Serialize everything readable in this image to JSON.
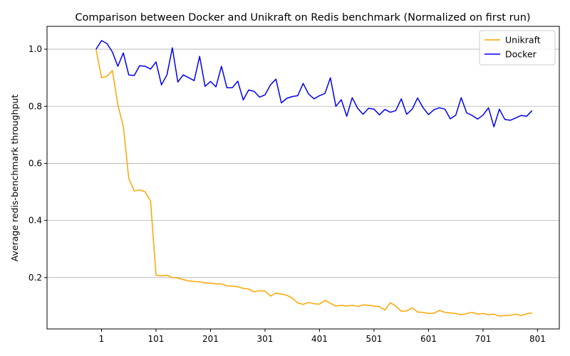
{
  "chart_data": {
    "type": "line",
    "title": "Comparison between Docker and Unikraft on Redis benchmark (Normalized on first run)",
    "xlabel": "",
    "ylabel": "Average redis-benchmark throughput",
    "xlim": [
      -99,
      841
    ],
    "ylim": [
      0.02,
      1.08
    ],
    "xticks": [
      1,
      101,
      201,
      301,
      401,
      501,
      601,
      701,
      801
    ],
    "yticks": [
      0.2,
      0.4,
      0.6,
      0.8,
      1.0
    ],
    "ytick_labels": [
      "0.2",
      "0.4",
      "0.6",
      "0.8",
      "1.0"
    ],
    "grid": "horizontal",
    "legend_position": "top-right",
    "x": [
      -9,
      1,
      11,
      21,
      31,
      41,
      51,
      61,
      71,
      81,
      91,
      101,
      111,
      121,
      131,
      141,
      151,
      161,
      171,
      181,
      191,
      201,
      211,
      221,
      231,
      241,
      251,
      261,
      271,
      281,
      291,
      301,
      311,
      321,
      331,
      341,
      351,
      361,
      371,
      381,
      391,
      401,
      411,
      421,
      431,
      441,
      451,
      461,
      471,
      481,
      491,
      501,
      511,
      521,
      531,
      541,
      551,
      561,
      571,
      581,
      591,
      601,
      611,
      621,
      631,
      641,
      651,
      661,
      671,
      681,
      691,
      701,
      711,
      721,
      731,
      741,
      751,
      761,
      771,
      781,
      791
    ],
    "series": [
      {
        "name": "Unikraft",
        "color": "#ffa500",
        "values": [
          1.0,
          0.9,
          0.905,
          0.925,
          0.805,
          0.73,
          0.548,
          0.503,
          0.507,
          0.5,
          0.468,
          0.208,
          0.206,
          0.208,
          0.2,
          0.198,
          0.193,
          0.188,
          0.186,
          0.185,
          0.181,
          0.18,
          0.178,
          0.178,
          0.171,
          0.17,
          0.168,
          0.162,
          0.16,
          0.15,
          0.154,
          0.153,
          0.135,
          0.146,
          0.142,
          0.138,
          0.128,
          0.111,
          0.106,
          0.113,
          0.108,
          0.107,
          0.12,
          0.11,
          0.1,
          0.103,
          0.1,
          0.103,
          0.099,
          0.104,
          0.103,
          0.1,
          0.098,
          0.086,
          0.112,
          0.1,
          0.082,
          0.083,
          0.094,
          0.079,
          0.078,
          0.074,
          0.075,
          0.085,
          0.078,
          0.076,
          0.074,
          0.07,
          0.074,
          0.078,
          0.072,
          0.074,
          0.07,
          0.072,
          0.065,
          0.067,
          0.068,
          0.072,
          0.067,
          0.073,
          0.076
        ]
      },
      {
        "name": "Docker",
        "color": "#0000ee",
        "values": [
          1.0,
          1.03,
          1.02,
          0.99,
          0.94,
          0.987,
          0.91,
          0.908,
          0.942,
          0.94,
          0.93,
          0.955,
          0.875,
          0.91,
          1.005,
          0.885,
          0.91,
          0.9,
          0.89,
          0.975,
          0.87,
          0.887,
          0.868,
          0.94,
          0.865,
          0.865,
          0.888,
          0.822,
          0.857,
          0.852,
          0.832,
          0.84,
          0.875,
          0.895,
          0.812,
          0.828,
          0.834,
          0.837,
          0.88,
          0.843,
          0.826,
          0.837,
          0.845,
          0.9,
          0.8,
          0.823,
          0.765,
          0.83,
          0.793,
          0.772,
          0.793,
          0.79,
          0.77,
          0.789,
          0.779,
          0.785,
          0.826,
          0.772,
          0.79,
          0.829,
          0.795,
          0.771,
          0.788,
          0.795,
          0.79,
          0.756,
          0.769,
          0.83,
          0.777,
          0.768,
          0.755,
          0.769,
          0.795,
          0.728,
          0.79,
          0.754,
          0.751,
          0.759,
          0.768,
          0.765,
          0.785
        ]
      }
    ]
  }
}
